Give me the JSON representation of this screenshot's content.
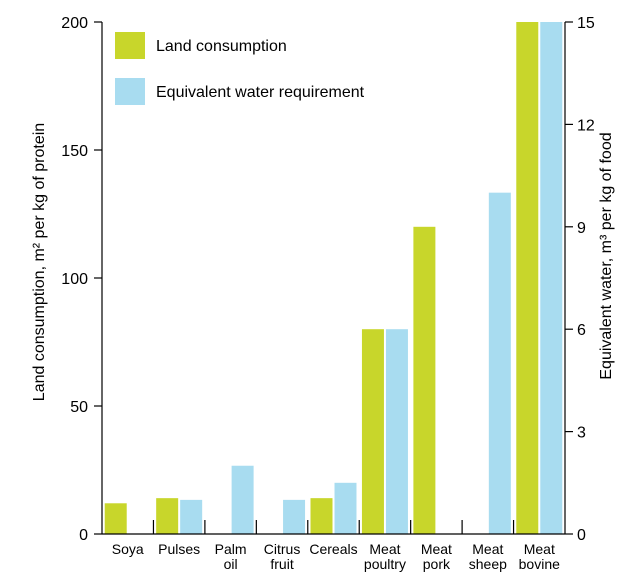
{
  "chart_data": {
    "type": "bar",
    "categories": [
      [
        "Soya"
      ],
      [
        "Pulses"
      ],
      [
        "Palm",
        "oil"
      ],
      [
        "Citrus",
        "fruit"
      ],
      [
        "Cereals"
      ],
      [
        "Meat",
        "poultry"
      ],
      [
        "Meat",
        "pork"
      ],
      [
        "Meat",
        "sheep"
      ],
      [
        "Meat",
        "bovine"
      ]
    ],
    "series": [
      {
        "name": "Land consumption",
        "axis": "left",
        "color": "#c8d62b",
        "values": [
          12,
          14,
          0,
          0,
          14,
          80,
          120,
          0,
          200
        ]
      },
      {
        "name": "Equivalent water requirement",
        "axis": "right",
        "color": "#a8dcf0",
        "values": [
          0,
          1.0,
          2.0,
          1.0,
          1.5,
          6.0,
          0,
          10.0,
          15.0
        ]
      }
    ],
    "ylabel": "Land consumption, m² per kg of protein",
    "y2label": "Equivalent water, m³ per kg of food",
    "ylim": [
      0,
      200
    ],
    "y2lim": [
      0,
      15
    ],
    "yticks": [
      0,
      50,
      100,
      150,
      200
    ],
    "y2ticks": [
      0,
      3,
      6,
      9,
      12,
      15
    ],
    "grid": false,
    "legend": "top-left"
  }
}
